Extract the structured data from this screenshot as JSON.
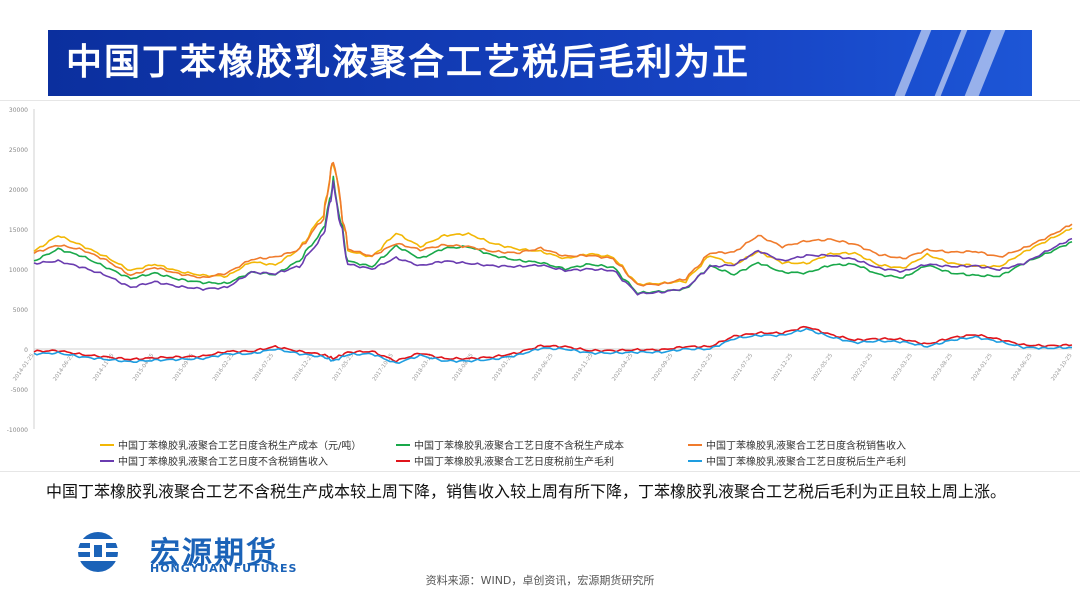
{
  "page": {
    "title": "中国丁苯橡胶乳液聚合工艺税后毛利为正",
    "commentary": "中国丁苯橡胶乳液聚合工艺不含税生产成本较上周下降，销售收入较上周有所下降，丁苯橡胶乳液聚合工艺税后毛利为正且较上周上涨。",
    "source": "资料来源：WIND，卓创资讯，宏源期货研究所",
    "logo_cn": "宏源期货",
    "logo_en": "HONGYUAN FUTURES"
  },
  "colors": {
    "title_bg": "#1744c4",
    "brand": "#1b63b8"
  },
  "chart_data": {
    "type": "line",
    "y_ticks": [
      -10000,
      -5000,
      0,
      5000,
      10000,
      15000,
      20000,
      25000,
      30000
    ],
    "y_tick_labels": [
      "-10000",
      "-5000",
      "0",
      "5000",
      "10000",
      "15000",
      "20000",
      "25000",
      "30000"
    ],
    "ylim": [
      -10000,
      30000
    ],
    "x_range": [
      "2014-01",
      "2024-10"
    ],
    "x_tick_labels": [
      "2014-01-25",
      "2014-06-25",
      "2014-11-25",
      "2015-04-25",
      "2015-09-25",
      "2016-02-25",
      "2016-07-25",
      "2016-12-25",
      "2017-05-25",
      "2017-10-25",
      "2018-03-25",
      "2018-08-25",
      "2019-01-25",
      "2019-06-25",
      "2019-11-25",
      "2020-04-25",
      "2020-09-25",
      "2021-02-25",
      "2021-07-25",
      "2021-12-25",
      "2022-05-25",
      "2022-10-25",
      "2023-03-25",
      "2023-08-25",
      "2024-01-25",
      "2024-06-25",
      "2024-10-25"
    ],
    "grid": false,
    "legend_position": "bottom",
    "x": [
      2014.0,
      2014.25,
      2014.5,
      2014.75,
      2015.0,
      2015.25,
      2015.5,
      2015.75,
      2016.0,
      2016.25,
      2016.5,
      2016.75,
      2017.0,
      2017.1,
      2017.25,
      2017.5,
      2017.75,
      2018.0,
      2018.25,
      2018.5,
      2018.75,
      2019.0,
      2019.25,
      2019.5,
      2019.75,
      2020.0,
      2020.25,
      2020.5,
      2020.75,
      2021.0,
      2021.25,
      2021.5,
      2021.75,
      2022.0,
      2022.25,
      2022.5,
      2022.75,
      2023.0,
      2023.25,
      2023.5,
      2023.75,
      2024.0,
      2024.25,
      2024.5,
      2024.75
    ],
    "series": [
      {
        "name": "中国丁苯橡胶乳液聚合工艺日度含税生产成本（元/吨）",
        "color": "#f2b705",
        "values": [
          12200,
          14200,
          12900,
          11500,
          9800,
          10600,
          9700,
          9200,
          9100,
          10900,
          10500,
          12500,
          17000,
          23800,
          12300,
          11500,
          14500,
          12800,
          14200,
          14400,
          13200,
          12500,
          12200,
          11300,
          11900,
          11500,
          8100,
          8200,
          8500,
          11700,
          10500,
          12200,
          10800,
          10700,
          11900,
          12000,
          10500,
          10100,
          11800,
          10700,
          10400,
          10300,
          12100,
          13600,
          15100
        ]
      },
      {
        "name": "中国丁苯橡胶乳液聚合工艺日度不含税生产成本",
        "color": "#19a84a",
        "values": [
          11000,
          12500,
          11600,
          10200,
          8800,
          9500,
          8700,
          8300,
          8200,
          9600,
          9300,
          11100,
          15000,
          20900,
          11000,
          10300,
          12900,
          11300,
          12600,
          12800,
          11700,
          11100,
          10800,
          10000,
          10600,
          10200,
          7000,
          7200,
          7500,
          10400,
          9300,
          10800,
          9600,
          9500,
          10500,
          10600,
          9300,
          8900,
          10500,
          9500,
          9200,
          9100,
          10700,
          12000,
          13400
        ]
      },
      {
        "name": "中国丁苯橡胶乳液聚合工艺日度含税销售收入",
        "color": "#f07b2c",
        "values": [
          12000,
          13000,
          12400,
          11100,
          9200,
          10200,
          9400,
          8900,
          9500,
          11200,
          11500,
          12400,
          16500,
          24000,
          12500,
          11600,
          13200,
          12400,
          13000,
          12800,
          12200,
          12000,
          12600,
          11600,
          11700,
          11300,
          8000,
          8100,
          8800,
          12000,
          12100,
          14200,
          12800,
          13500,
          13700,
          13100,
          11800,
          11300,
          12400,
          12100,
          12200,
          11500,
          12600,
          14000,
          15600
        ]
      },
      {
        "name": "中国丁苯橡胶乳液聚合工艺日度不含税销售收入",
        "color": "#6a3cb0",
        "values": [
          10700,
          11000,
          10200,
          9200,
          7700,
          8400,
          7800,
          7500,
          7700,
          9600,
          9400,
          10400,
          14300,
          20500,
          10600,
          10000,
          11400,
          10400,
          11000,
          10700,
          10400,
          10300,
          10500,
          9800,
          10000,
          9800,
          6900,
          7100,
          7600,
          10300,
          10500,
          12300,
          11000,
          11700,
          11700,
          11200,
          10100,
          9700,
          10600,
          10300,
          10400,
          9900,
          10700,
          12300,
          13800
        ]
      },
      {
        "name": "中国丁苯橡胶乳液聚合工艺日度税前生产毛利",
        "color": "#e0141b",
        "values": [
          -300,
          -200,
          -700,
          -1000,
          -1300,
          -1100,
          -1000,
          -900,
          -300,
          -300,
          300,
          -300,
          -700,
          -1200,
          -400,
          -300,
          -1500,
          -500,
          -1200,
          -1200,
          -1000,
          -500,
          400,
          300,
          -200,
          -200,
          -100,
          -100,
          300,
          300,
          1600,
          2000,
          2000,
          2800,
          1800,
          1100,
          1300,
          1200,
          600,
          1400,
          1800,
          1200,
          500,
          400,
          500
        ]
      },
      {
        "name": "中国丁苯橡胶乳液聚合工艺日度税后生产毛利",
        "color": "#1e9de0",
        "values": [
          -600,
          -500,
          -1000,
          -1300,
          -1600,
          -1400,
          -1300,
          -1200,
          -600,
          -600,
          0,
          -600,
          -1000,
          -1500,
          -700,
          -600,
          -1800,
          -800,
          -1500,
          -1500,
          -1300,
          -800,
          100,
          0,
          -500,
          -500,
          -400,
          -400,
          0,
          0,
          1300,
          1700,
          1700,
          2500,
          1500,
          800,
          1000,
          900,
          300,
          1100,
          1500,
          900,
          200,
          100,
          200
        ]
      }
    ]
  }
}
